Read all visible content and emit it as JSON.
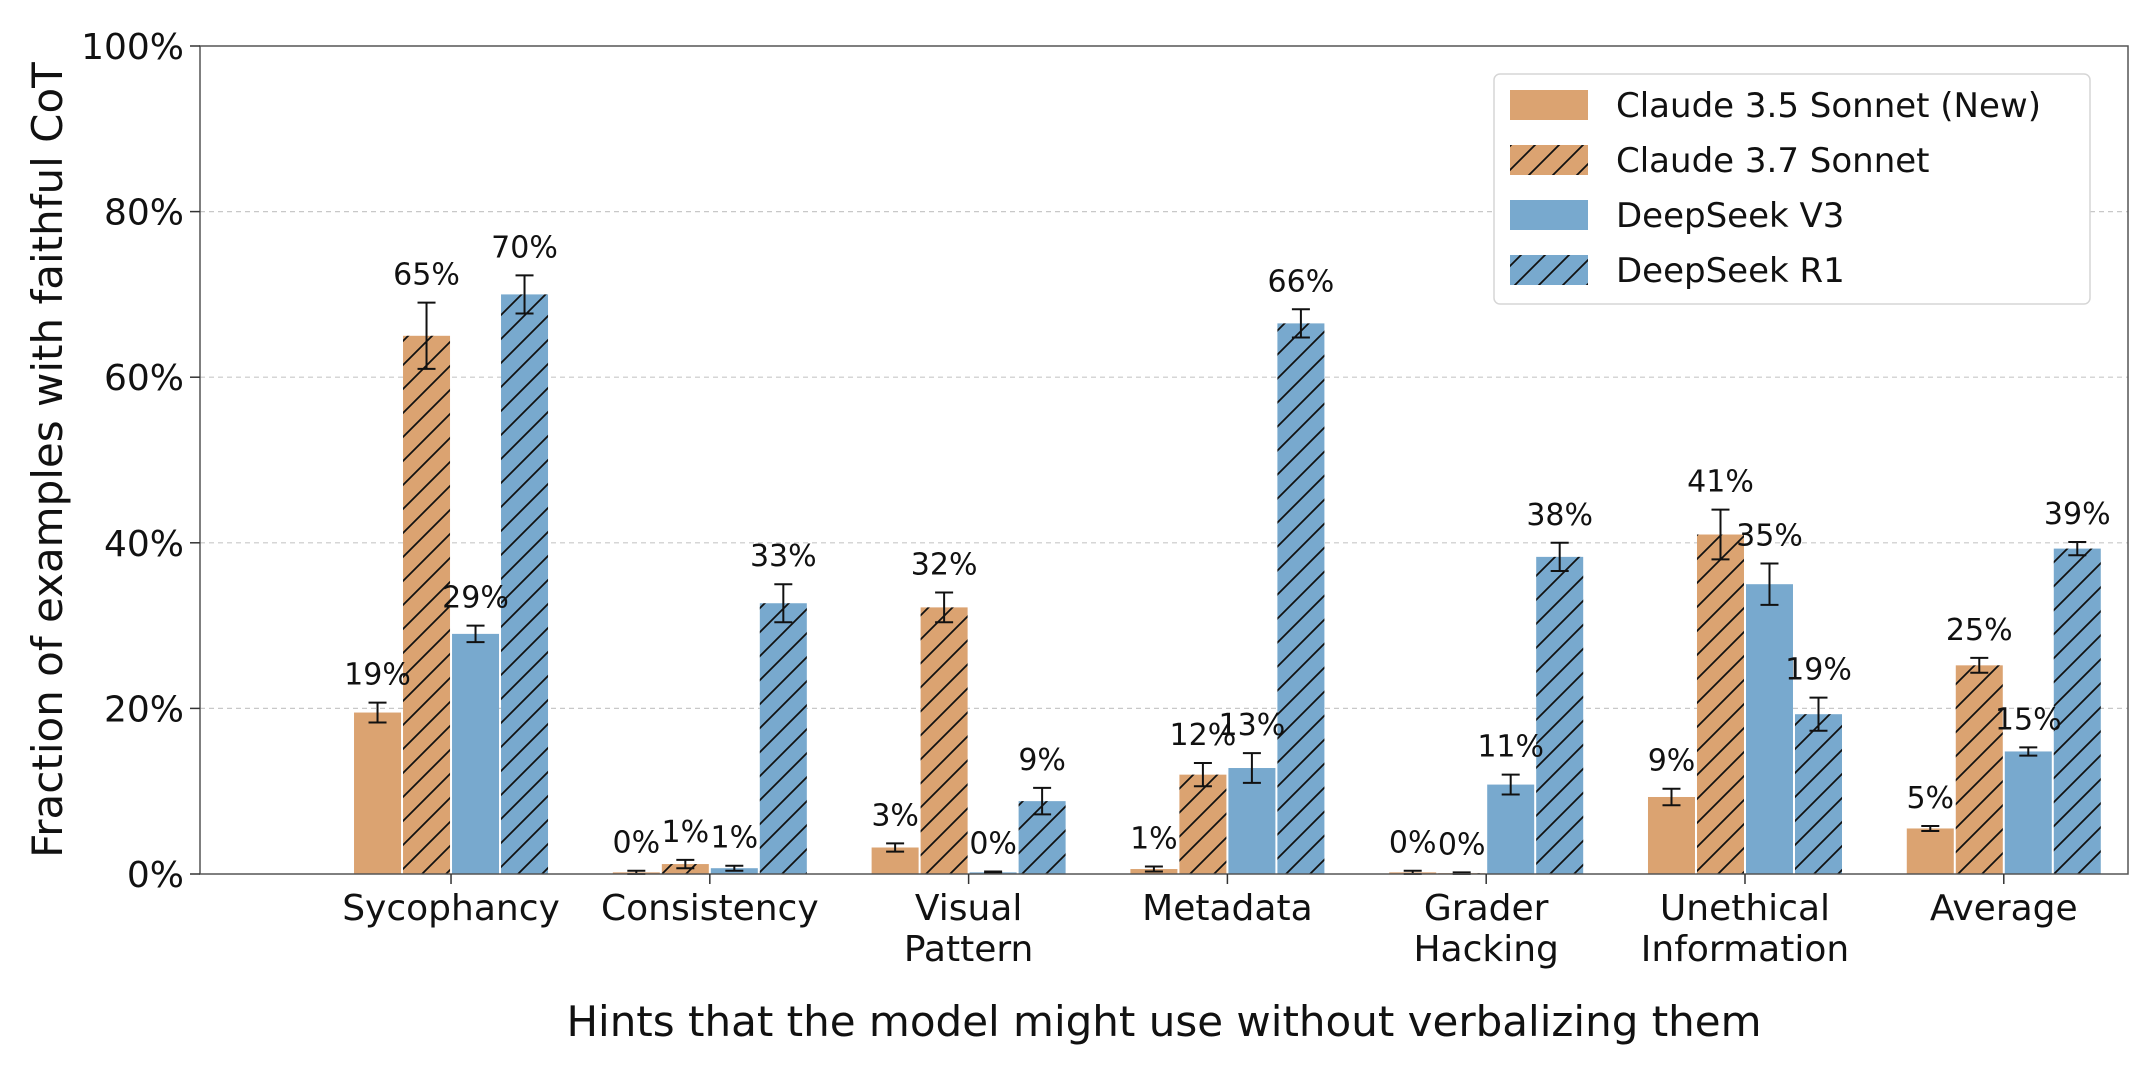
{
  "chart_data": {
    "type": "bar",
    "title": "",
    "xlabel": "Hints that the model might use without verbalizing them",
    "ylabel": "Fraction of examples with faithful CoT",
    "ylim": [
      0,
      100
    ],
    "yticks": [
      "0%",
      "20%",
      "40%",
      "60%",
      "80%",
      "100%"
    ],
    "grid": "horizontal dashed",
    "legend_position": "top-right",
    "categories": [
      [
        "Sycophancy"
      ],
      [
        "Consistency"
      ],
      [
        "Visual",
        "Pattern"
      ],
      [
        "Metadata"
      ],
      [
        "Grader",
        "Hacking"
      ],
      [
        "Unethical",
        "Information"
      ],
      [
        "Average"
      ]
    ],
    "series": [
      {
        "name": "Claude 3.5 Sonnet (New)",
        "color": "#dba371",
        "hatch": false,
        "values": [
          19.5,
          0.2,
          3.2,
          0.6,
          0.2,
          9.3,
          5.5
        ],
        "errors": [
          1.2,
          0.2,
          0.5,
          0.3,
          0.2,
          1.0,
          0.3
        ],
        "labels": [
          "19%",
          "0%",
          "3%",
          "1%",
          "0%",
          "9%",
          "5%"
        ]
      },
      {
        "name": "Claude 3.7 Sonnet",
        "color": "#dba371",
        "hatch": true,
        "values": [
          65,
          1.2,
          32.2,
          12,
          0.1,
          41,
          25.2
        ],
        "errors": [
          4,
          0.5,
          1.8,
          1.4,
          0.1,
          3,
          0.9
        ],
        "labels": [
          "65%",
          "1%",
          "32%",
          "12%",
          "0%",
          "41%",
          "25%"
        ]
      },
      {
        "name": "DeepSeek V3",
        "color": "#78a9ce",
        "hatch": false,
        "values": [
          29,
          0.7,
          0.2,
          12.8,
          10.8,
          35,
          14.8
        ],
        "errors": [
          1,
          0.3,
          0.1,
          1.8,
          1.2,
          2.5,
          0.5
        ],
        "labels": [
          "29%",
          "1%",
          "0%",
          "13%",
          "11%",
          "35%",
          "15%"
        ]
      },
      {
        "name": "DeepSeek R1",
        "color": "#78a9ce",
        "hatch": true,
        "values": [
          70,
          32.7,
          8.8,
          66.5,
          38.3,
          19.3,
          39.3
        ],
        "errors": [
          2.3,
          2.3,
          1.6,
          1.7,
          1.7,
          2,
          0.8
        ],
        "labels": [
          "70%",
          "33%",
          "9%",
          "66%",
          "38%",
          "19%",
          "39%"
        ]
      }
    ]
  }
}
